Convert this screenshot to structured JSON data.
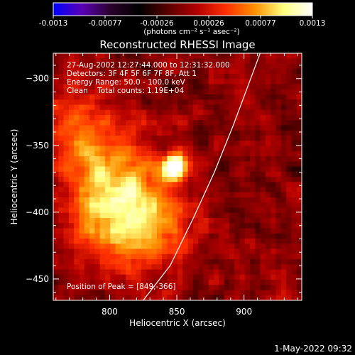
{
  "colorbar": {
    "tick_labels": [
      "-0.0013",
      "-0.00077",
      "-0.00026",
      "0.00026",
      "0.00077",
      "0.0013"
    ],
    "unit_label": "(photons cm⁻² s⁻¹ asec⁻²)",
    "range": [
      -0.0013,
      0.0013
    ],
    "colormap": [
      "#0000ff",
      "#5a00b4",
      "#2a002a",
      "#000000",
      "#5a0000",
      "#b40000",
      "#ff3000",
      "#ff9000",
      "#ffff80",
      "#ffffff"
    ]
  },
  "title": "Reconstructed RHESSI Image",
  "info_lines": [
    "27-Aug-2002 12:27:44.000 to 12:31:32.000",
    "Detectors: 3F 4F 5F 6F 7F 8F, Att 1",
    "Energy Range: 50.0 - 100.0 keV",
    "Clean    Total counts: 1.19E+04"
  ],
  "peak_label": "Position of Peak = [849,-366]",
  "footer_date": "1-May-2022 09:32",
  "chart_data": {
    "type": "heatmap",
    "xlabel": "Heliocentric X (arcsec)",
    "ylabel": "Heliocentric Y (arcsec)",
    "xlim": [
      758,
      943
    ],
    "ylim": [
      -466,
      -281
    ],
    "x_ticks": [
      800,
      850,
      900
    ],
    "y_ticks": [
      -300,
      -350,
      -400,
      -450
    ],
    "peak": {
      "x": 849,
      "y": -366,
      "value": 0.0013
    },
    "secondary_sources": [
      {
        "x": 795,
        "y": -360,
        "value": 0.0006
      },
      {
        "x": 815,
        "y": -390,
        "value": 0.0005
      },
      {
        "x": 840,
        "y": -410,
        "value": 0.0004
      },
      {
        "x": 810,
        "y": -420,
        "value": 0.00035
      },
      {
        "x": 790,
        "y": -405,
        "value": 0.0003
      },
      {
        "x": 770,
        "y": -330,
        "value": 0.0003
      }
    ],
    "limb_curve": [
      {
        "x": 825,
        "y": -466
      },
      {
        "x": 845,
        "y": -440
      },
      {
        "x": 862,
        "y": -405
      },
      {
        "x": 878,
        "y": -370
      },
      {
        "x": 892,
        "y": -335
      },
      {
        "x": 905,
        "y": -300
      },
      {
        "x": 912,
        "y": -281
      }
    ]
  }
}
